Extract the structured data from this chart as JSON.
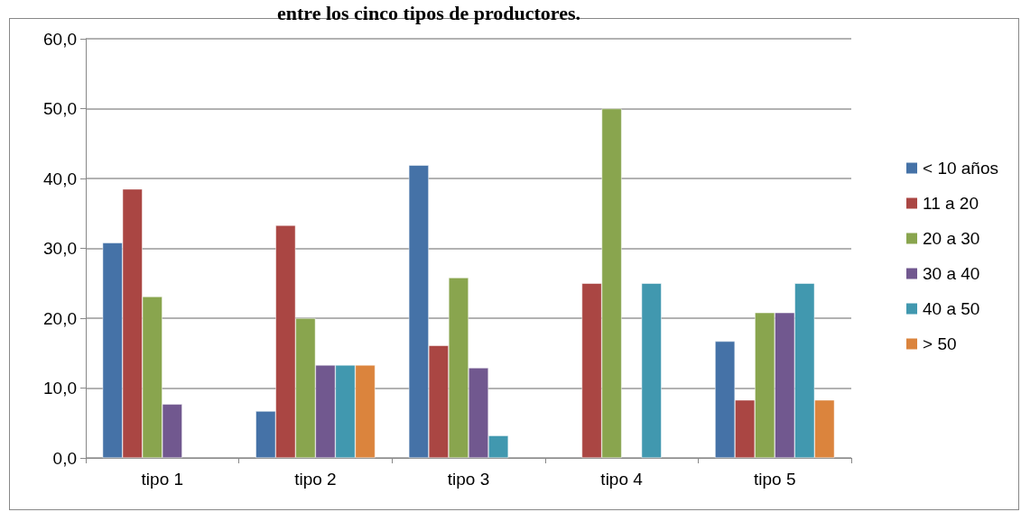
{
  "chart_data": {
    "type": "bar",
    "title": "entre los cinco tipos de productores.",
    "categories": [
      "tipo 1",
      "tipo 2",
      "tipo 3",
      "tipo 4",
      "tipo 5"
    ],
    "series": [
      {
        "name": "< 10 años",
        "color": "#4572a7",
        "values": [
          30.8,
          6.7,
          41.9,
          null,
          16.7
        ]
      },
      {
        "name": "11 a 20",
        "color": "#aa4643",
        "values": [
          38.5,
          33.3,
          16.1,
          25.0,
          8.3
        ]
      },
      {
        "name": "20 a 30",
        "color": "#89a54e",
        "values": [
          23.1,
          20.0,
          25.8,
          50.0,
          20.8
        ]
      },
      {
        "name": "30 a 40",
        "color": "#71588f",
        "values": [
          7.7,
          13.3,
          12.9,
          null,
          20.8
        ]
      },
      {
        "name": "40 a 50",
        "color": "#4198af",
        "values": [
          null,
          13.3,
          3.2,
          25.0,
          25.0
        ]
      },
      {
        "name": "> 50",
        "color": "#db843d",
        "values": [
          null,
          13.3,
          null,
          null,
          8.3
        ]
      }
    ],
    "ylim": [
      0,
      60
    ],
    "yticks": [
      {
        "value": 0,
        "label": "0,0"
      },
      {
        "value": 10,
        "label": "10,0"
      },
      {
        "value": 20,
        "label": "20,0"
      },
      {
        "value": 30,
        "label": "30,0"
      },
      {
        "value": 40,
        "label": "40,0"
      },
      {
        "value": 50,
        "label": "50,0"
      },
      {
        "value": 60,
        "label": "60,0"
      }
    ],
    "grid": "y",
    "legend": "right"
  }
}
